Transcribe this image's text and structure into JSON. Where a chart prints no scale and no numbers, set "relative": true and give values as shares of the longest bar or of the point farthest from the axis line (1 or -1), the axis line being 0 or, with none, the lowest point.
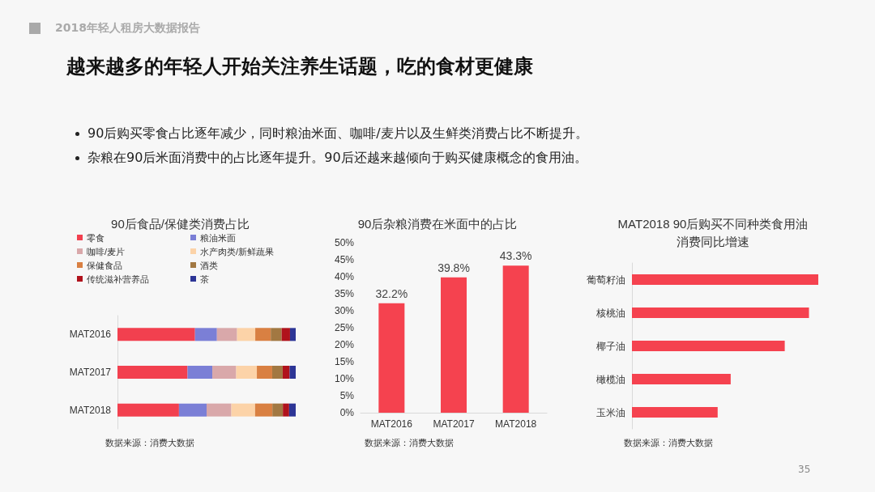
{
  "chart_data": [
    {
      "type": "other",
      "title": "越来越多的年轻人开始关注养生话题，吃的食材更健康",
      "annotations": [
        "2018年轻人租房大数据报告",
        "90后购买零食占比逐年减少，同时粮油米面、咖啡/麦片以及生鲜类消费占比不断提升。",
        "杂粮在90后米面消费中的占比逐年提升。90后还越来越倾向于购买健康概念的食用油。",
        "35"
      ]
    },
    {
      "type": "bar",
      "title": "90后食品/保健类消费占比",
      "orientation": "horizontal",
      "stacked": true,
      "relative": true,
      "legend": "top",
      "categories": [
        "MAT2016",
        "MAT2017",
        "MAT2018"
      ],
      "annotations": [
        "数据来源：消费大数据"
      ],
      "series": [
        {
          "name": "零食",
          "color": "#f2404f",
          "values": [
            0.435,
            0.393,
            0.345
          ]
        },
        {
          "name": "粮油米面",
          "color": "#7b7fd6",
          "values": [
            0.123,
            0.139,
            0.155
          ]
        },
        {
          "name": "咖啡/麦片",
          "color": "#d9a8aa",
          "values": [
            0.113,
            0.134,
            0.139
          ]
        },
        {
          "name": "水产肉类/新鲜蔬果",
          "color": "#fcd3a8",
          "values": [
            0.102,
            0.116,
            0.133
          ]
        },
        {
          "name": "保健食品",
          "color": "#d98042",
          "values": [
            0.087,
            0.086,
            0.097
          ]
        },
        {
          "name": "酒类",
          "color": "#a27842",
          "values": [
            0.061,
            0.059,
            0.059
          ]
        },
        {
          "name": "传统滋补营养品",
          "color": "#b0121c",
          "values": [
            0.047,
            0.039,
            0.035
          ]
        },
        {
          "name": "茶",
          "color": "#2d3596",
          "values": [
            0.032,
            0.034,
            0.037
          ]
        }
      ]
    },
    {
      "type": "bar",
      "title": "90后杂粮消费在米面中的占比",
      "categories": [
        "MAT2016",
        "MAT2017",
        "MAT2018"
      ],
      "values": [
        32.2,
        39.8,
        43.3
      ],
      "color": "#f5424f",
      "value_labels": [
        "32.2%",
        "39.8%",
        "43.3%"
      ],
      "ylim": [
        0,
        50
      ],
      "yticks": [
        {
          "value": 0,
          "label": "0%"
        },
        {
          "value": 5,
          "label": "5%"
        },
        {
          "value": 10,
          "label": "10%"
        },
        {
          "value": 15,
          "label": "15%"
        },
        {
          "value": 20,
          "label": "20%"
        },
        {
          "value": 25,
          "label": "25%"
        },
        {
          "value": 30,
          "label": "30%"
        },
        {
          "value": 35,
          "label": "35%"
        },
        {
          "value": 40,
          "label": "40%"
        },
        {
          "value": 45,
          "label": "45%"
        },
        {
          "value": 50,
          "label": "50%"
        }
      ],
      "grid": false,
      "annotations": [
        "数据来源：消费大数据"
      ]
    },
    {
      "type": "bar",
      "title": "MAT2018 90后购买不同种类食用油消费同比增速",
      "orientation": "horizontal",
      "relative": true,
      "categories": [
        "葡萄籽油",
        "核桃油",
        "椰子油",
        "橄榄油",
        "玉米油"
      ],
      "values": [
        1,
        0.95,
        0.82,
        0.53,
        0.46
      ],
      "color": "#f5424f",
      "grid": false,
      "annotations": [
        "数据来源：消费大数据"
      ]
    }
  ]
}
